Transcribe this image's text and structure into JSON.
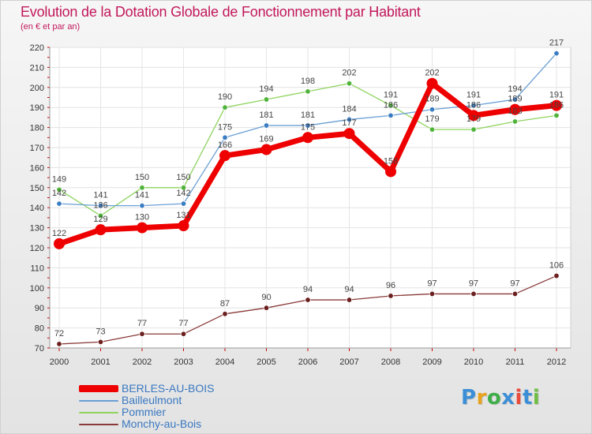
{
  "header": {
    "title": "Evolution de la Dotation Globale de Fonctionnement par Habitant",
    "subtitle": "(en € et par an)"
  },
  "logo": {
    "text": "Proxiti",
    "letters": [
      "P",
      "r",
      "o",
      "x",
      "i",
      "t",
      "i"
    ],
    "colors": [
      "#3c8fd6",
      "#e9a21b",
      "#3fae49",
      "#3c8fd6",
      "#e84a3b",
      "#3c8fd6",
      "#6fbe44"
    ]
  },
  "chart_data": {
    "type": "line",
    "title": "Evolution de la Dotation Globale de Fonctionnement par Habitant",
    "subtitle": "(en € et par an)",
    "categories": [
      "2000",
      "2001",
      "2002",
      "2003",
      "2004",
      "2005",
      "2006",
      "2007",
      "2008",
      "2009",
      "2010",
      "2011",
      "2012"
    ],
    "ylim": [
      70,
      220
    ],
    "yticks": [
      70,
      80,
      90,
      100,
      110,
      120,
      130,
      140,
      150,
      160,
      170,
      180,
      190,
      200,
      210,
      220
    ],
    "grid": true,
    "series": [
      {
        "name": "BERLES-AU-BOIS",
        "color": "#ee0000",
        "marker": "#ee0000",
        "values": [
          122,
          129,
          130,
          131,
          166,
          169,
          175,
          177,
          158,
          202,
          186,
          189,
          191
        ]
      },
      {
        "name": "Bailleulmont",
        "color": "#6a9fd4",
        "marker": "#3a7cc2",
        "values": [
          142,
          141,
          141,
          142,
          175,
          181,
          181,
          184,
          186,
          189,
          191,
          194,
          217
        ]
      },
      {
        "name": "Pommier",
        "color": "#8fd45e",
        "marker": "#4fb33a",
        "values": [
          149,
          136,
          150,
          150,
          190,
          194,
          198,
          202,
          191,
          179,
          179,
          183,
          186
        ]
      },
      {
        "name": "Monchy-au-Bois",
        "color": "#8a3a3a",
        "marker": "#6b1f1f",
        "values": [
          72,
          73,
          77,
          77,
          87,
          90,
          94,
          94,
          96,
          97,
          97,
          97,
          106
        ]
      }
    ],
    "labels": [
      {
        "series": "BERLES-AU-BOIS",
        "values": [
          122,
          129,
          130,
          131,
          166,
          169,
          175,
          177,
          158,
          202,
          186,
          189,
          191
        ]
      },
      {
        "series": "Bailleulmont",
        "values": [
          142,
          141,
          141,
          142,
          175,
          181,
          181,
          184,
          186,
          189,
          191,
          194,
          217
        ]
      },
      {
        "series": "Pommier",
        "values": [
          149,
          136,
          150,
          150,
          190,
          194,
          198,
          202,
          191,
          179,
          179,
          183,
          186
        ]
      },
      {
        "series": "Monchy-au-Bois",
        "values": [
          72,
          73,
          77,
          77,
          87,
          90,
          94,
          94,
          96,
          97,
          97,
          97,
          106
        ]
      }
    ]
  }
}
